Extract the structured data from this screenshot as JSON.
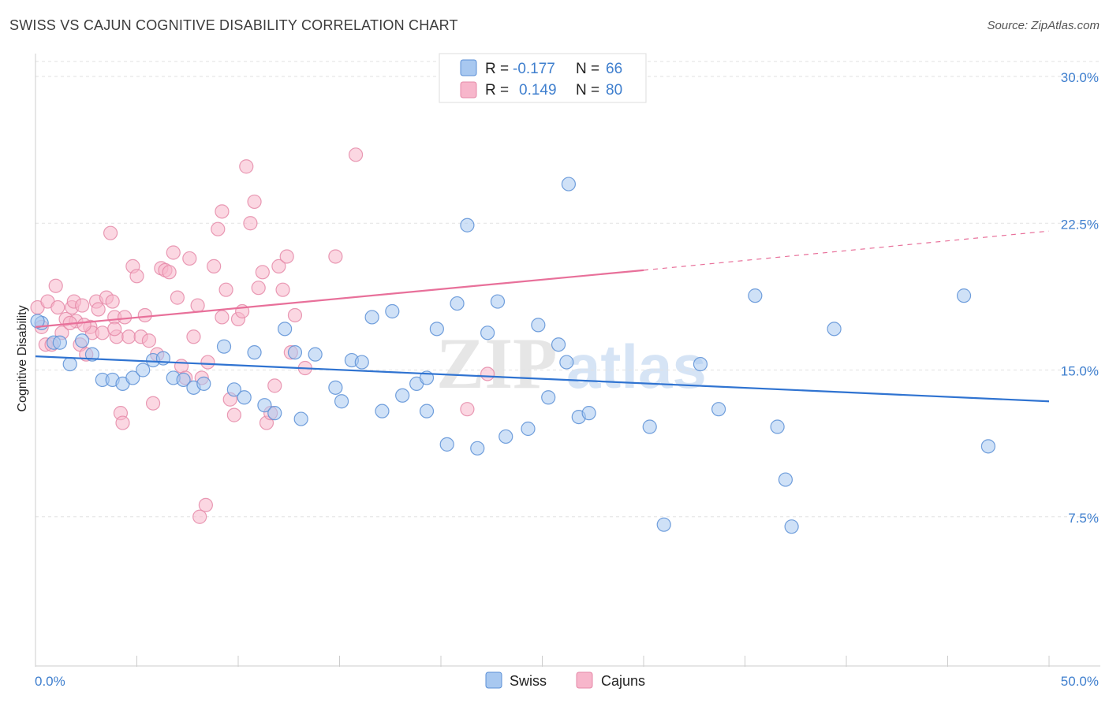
{
  "header": {
    "title": "SWISS VS CAJUN COGNITIVE DISABILITY CORRELATION CHART",
    "source": "Source: ZipAtlas.com"
  },
  "watermark": {
    "zip": "ZIP",
    "atlas": "atlas"
  },
  "legend": {
    "rows": [
      {
        "r_label": "R =",
        "r_value": "-0.177",
        "n_label": "N =",
        "n_value": "66",
        "color": "#a8c8f0"
      },
      {
        "r_label": "R =",
        "r_value": "0.149",
        "n_label": "N =",
        "n_value": "80",
        "color": "#f7b6cb"
      }
    ]
  },
  "bottom_legend": [
    "Swiss",
    "Cajuns"
  ],
  "colors": {
    "swiss_fill": "#a8c8f0",
    "swiss_stroke": "#5b8fd6",
    "swiss_line": "#2f73d1",
    "cajun_fill": "#f7b6cb",
    "cajun_stroke": "#e58aa8",
    "cajun_line": "#e8709a",
    "accent_text": "#3f7fce"
  },
  "chart_data": {
    "type": "scatter",
    "title": "SWISS VS CAJUN COGNITIVE DISABILITY CORRELATION CHART",
    "xlabel": "",
    "ylabel": "Cognitive Disability",
    "xlim": [
      0,
      50
    ],
    "ylim": [
      0,
      30
    ],
    "x_tick_labels": [
      "0.0%",
      "50.0%"
    ],
    "y_tick_labels": [
      "7.5%",
      "15.0%",
      "22.5%",
      "30.0%"
    ],
    "y_ticks": [
      7.5,
      15,
      22.5,
      30
    ],
    "grid": true,
    "legend_position": "top-center",
    "series": [
      {
        "name": "Swiss",
        "points": [
          [
            0.3,
            17.4
          ],
          [
            0.9,
            16.4
          ],
          [
            1.2,
            16.4
          ],
          [
            1.7,
            15.3
          ],
          [
            2.3,
            16.5
          ],
          [
            2.8,
            15.8
          ],
          [
            3.3,
            14.5
          ],
          [
            3.8,
            14.5
          ],
          [
            4.3,
            14.3
          ],
          [
            4.8,
            14.6
          ],
          [
            5.3,
            15.0
          ],
          [
            5.8,
            15.5
          ],
          [
            6.3,
            15.6
          ],
          [
            6.8,
            14.6
          ],
          [
            7.3,
            14.5
          ],
          [
            7.8,
            14.1
          ],
          [
            8.3,
            14.3
          ],
          [
            9.3,
            16.2
          ],
          [
            9.8,
            14.0
          ],
          [
            10.3,
            13.6
          ],
          [
            10.8,
            15.9
          ],
          [
            11.3,
            13.2
          ],
          [
            11.8,
            12.8
          ],
          [
            12.3,
            17.1
          ],
          [
            12.8,
            15.9
          ],
          [
            13.1,
            12.5
          ],
          [
            13.8,
            15.8
          ],
          [
            14.8,
            14.1
          ],
          [
            15.1,
            13.4
          ],
          [
            15.6,
            15.5
          ],
          [
            16.1,
            15.4
          ],
          [
            16.6,
            17.7
          ],
          [
            17.1,
            12.9
          ],
          [
            17.6,
            18.0
          ],
          [
            18.1,
            13.7
          ],
          [
            18.8,
            14.3
          ],
          [
            19.3,
            14.6
          ],
          [
            19.3,
            12.9
          ],
          [
            19.8,
            17.1
          ],
          [
            20.3,
            11.2
          ],
          [
            20.8,
            18.4
          ],
          [
            21.3,
            22.4
          ],
          [
            21.8,
            11.0
          ],
          [
            22.3,
            16.9
          ],
          [
            22.8,
            18.5
          ],
          [
            23.2,
            11.6
          ],
          [
            24.3,
            12.0
          ],
          [
            24.8,
            17.3
          ],
          [
            25.3,
            13.6
          ],
          [
            25.8,
            16.3
          ],
          [
            26.2,
            15.4
          ],
          [
            26.3,
            24.5
          ],
          [
            26.8,
            12.6
          ],
          [
            27.3,
            12.8
          ],
          [
            30.3,
            12.1
          ],
          [
            31.0,
            7.1
          ],
          [
            32.8,
            15.3
          ],
          [
            33.7,
            13.0
          ],
          [
            35.5,
            18.8
          ],
          [
            36.6,
            12.1
          ],
          [
            37.0,
            9.4
          ],
          [
            37.3,
            7.0
          ],
          [
            39.4,
            17.1
          ],
          [
            45.8,
            18.8
          ],
          [
            47.0,
            11.1
          ],
          [
            0.1,
            17.5
          ]
        ],
        "trend": [
          [
            0,
            15.7
          ],
          [
            50,
            13.4
          ]
        ]
      },
      {
        "name": "Cajuns",
        "points": [
          [
            0.1,
            18.2
          ],
          [
            0.3,
            17.2
          ],
          [
            0.5,
            16.3
          ],
          [
            0.6,
            18.5
          ],
          [
            0.8,
            16.3
          ],
          [
            1.0,
            19.3
          ],
          [
            1.1,
            18.2
          ],
          [
            1.3,
            16.9
          ],
          [
            1.5,
            17.6
          ],
          [
            1.8,
            18.2
          ],
          [
            1.9,
            18.5
          ],
          [
            2.0,
            17.5
          ],
          [
            2.2,
            16.3
          ],
          [
            2.3,
            18.3
          ],
          [
            2.5,
            15.8
          ],
          [
            2.7,
            17.2
          ],
          [
            2.8,
            16.9
          ],
          [
            3.0,
            18.5
          ],
          [
            3.1,
            18.1
          ],
          [
            3.3,
            16.9
          ],
          [
            3.5,
            18.7
          ],
          [
            3.7,
            22.0
          ],
          [
            3.8,
            18.5
          ],
          [
            3.9,
            17.7
          ],
          [
            4.0,
            16.7
          ],
          [
            4.2,
            12.8
          ],
          [
            4.3,
            12.3
          ],
          [
            4.4,
            17.7
          ],
          [
            4.6,
            16.7
          ],
          [
            4.8,
            20.3
          ],
          [
            5.0,
            19.8
          ],
          [
            5.2,
            16.7
          ],
          [
            5.4,
            17.8
          ],
          [
            5.6,
            16.5
          ],
          [
            5.8,
            13.3
          ],
          [
            6.0,
            15.8
          ],
          [
            6.2,
            20.2
          ],
          [
            6.4,
            20.1
          ],
          [
            6.6,
            20.0
          ],
          [
            6.8,
            21.0
          ],
          [
            7.0,
            18.7
          ],
          [
            7.2,
            15.2
          ],
          [
            7.4,
            14.6
          ],
          [
            7.6,
            20.7
          ],
          [
            7.8,
            16.7
          ],
          [
            8.0,
            18.3
          ],
          [
            8.2,
            14.6
          ],
          [
            8.5,
            15.4
          ],
          [
            8.8,
            20.3
          ],
          [
            9.0,
            22.2
          ],
          [
            9.2,
            23.1
          ],
          [
            9.4,
            19.1
          ],
          [
            9.6,
            13.5
          ],
          [
            9.8,
            12.7
          ],
          [
            10.0,
            17.6
          ],
          [
            10.2,
            18.0
          ],
          [
            10.4,
            25.4
          ],
          [
            10.6,
            22.5
          ],
          [
            10.8,
            23.6
          ],
          [
            11.0,
            19.2
          ],
          [
            11.2,
            20.0
          ],
          [
            11.4,
            12.3
          ],
          [
            11.6,
            12.8
          ],
          [
            11.8,
            14.2
          ],
          [
            12.0,
            20.3
          ],
          [
            12.2,
            19.1
          ],
          [
            12.4,
            20.8
          ],
          [
            12.6,
            15.9
          ],
          [
            12.8,
            17.8
          ],
          [
            13.3,
            15.1
          ],
          [
            14.8,
            20.8
          ],
          [
            15.8,
            26.0
          ],
          [
            21.3,
            13.0
          ],
          [
            22.3,
            14.8
          ],
          [
            3.9,
            17.1
          ],
          [
            8.4,
            8.1
          ],
          [
            8.1,
            7.5
          ],
          [
            9.2,
            17.7
          ],
          [
            2.4,
            17.3
          ],
          [
            1.7,
            17.4
          ]
        ],
        "trend": [
          [
            0,
            17.2
          ],
          [
            30,
            20.1
          ]
        ],
        "trend_extension": [
          [
            30,
            20.1
          ],
          [
            50,
            22.1
          ]
        ]
      }
    ]
  }
}
